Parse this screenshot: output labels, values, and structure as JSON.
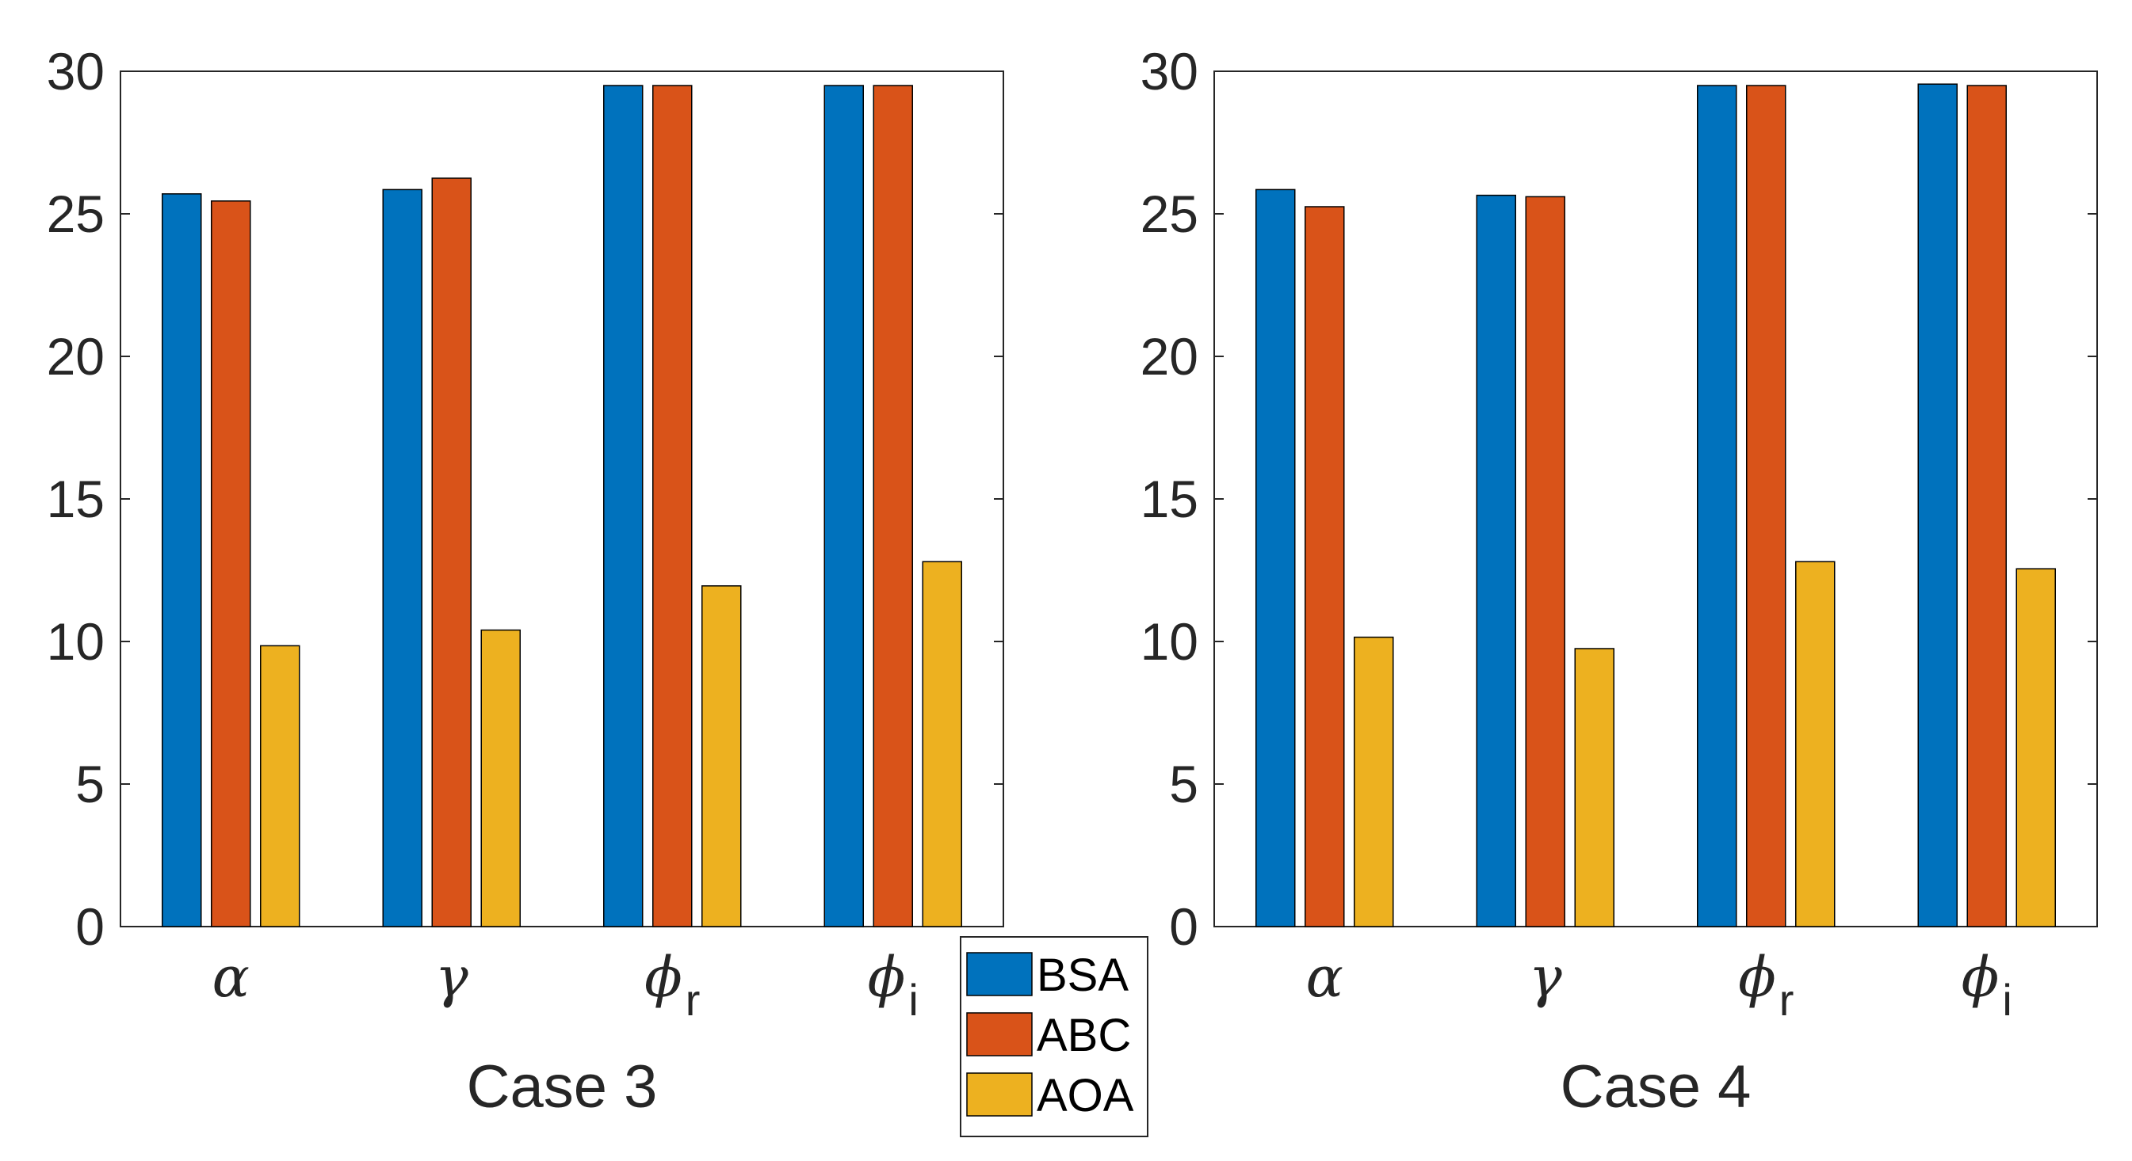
{
  "colors": {
    "BSA": "#0072BD",
    "ABC": "#D95319",
    "AOA": "#EDB120"
  },
  "legend": [
    "BSA",
    "ABC",
    "AOA"
  ],
  "chart_data": [
    {
      "type": "bar",
      "title": "",
      "xlabel": "Case 3",
      "ylabel": "",
      "ylim": [
        0,
        30
      ],
      "yticks": [
        0,
        5,
        10,
        15,
        20,
        25,
        30
      ],
      "categories": [
        {
          "symbol": "α",
          "sub": ""
        },
        {
          "symbol": "γ",
          "sub": ""
        },
        {
          "symbol": "ϕ",
          "sub": "r"
        },
        {
          "symbol": "ϕ",
          "sub": "i"
        }
      ],
      "series": [
        {
          "name": "BSA",
          "values": [
            25.7,
            25.85,
            29.5,
            29.5
          ]
        },
        {
          "name": "ABC",
          "values": [
            25.45,
            26.25,
            29.5,
            29.5
          ]
        },
        {
          "name": "AOA",
          "values": [
            9.85,
            10.4,
            11.95,
            12.8
          ]
        }
      ]
    },
    {
      "type": "bar",
      "title": "",
      "xlabel": "Case 4",
      "ylabel": "",
      "ylim": [
        0,
        30
      ],
      "yticks": [
        0,
        5,
        10,
        15,
        20,
        25,
        30
      ],
      "categories": [
        {
          "symbol": "α",
          "sub": ""
        },
        {
          "symbol": "γ",
          "sub": ""
        },
        {
          "symbol": "ϕ",
          "sub": "r"
        },
        {
          "symbol": "ϕ",
          "sub": "i"
        }
      ],
      "series": [
        {
          "name": "BSA",
          "values": [
            25.85,
            25.65,
            29.5,
            29.55
          ]
        },
        {
          "name": "ABC",
          "values": [
            25.25,
            25.6,
            29.5,
            29.5
          ]
        },
        {
          "name": "AOA",
          "values": [
            10.15,
            9.75,
            12.8,
            12.55
          ]
        }
      ]
    }
  ]
}
